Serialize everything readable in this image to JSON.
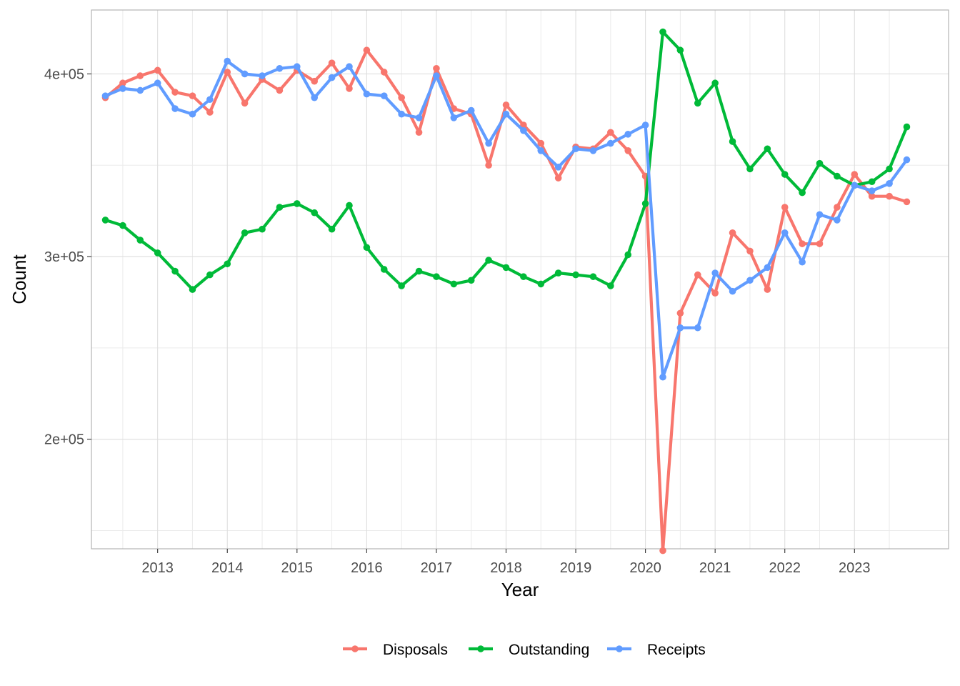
{
  "chart_data": {
    "type": "line",
    "xlabel": "Year",
    "ylabel": "Count",
    "xlim": [
      2012.05,
      2024.35
    ],
    "ylim": [
      140000,
      435000
    ],
    "x_ticks": [
      2013,
      2014,
      2015,
      2016,
      2017,
      2018,
      2019,
      2020,
      2021,
      2022,
      2023
    ],
    "y_ticks": [
      200000,
      300000,
      400000
    ],
    "y_tick_labels": [
      "2e+05",
      "3e+05",
      "4e+05"
    ],
    "grid": true,
    "legend_position": "bottom",
    "x": [
      2012.25,
      2012.5,
      2012.75,
      2013.0,
      2013.25,
      2013.5,
      2013.75,
      2014.0,
      2014.25,
      2014.5,
      2014.75,
      2015.0,
      2015.25,
      2015.5,
      2015.75,
      2016.0,
      2016.25,
      2016.5,
      2016.75,
      2017.0,
      2017.25,
      2017.5,
      2017.75,
      2018.0,
      2018.25,
      2018.5,
      2018.75,
      2019.0,
      2019.25,
      2019.5,
      2019.75,
      2020.0,
      2020.25,
      2020.5,
      2020.75,
      2021.0,
      2021.25,
      2021.5,
      2021.75,
      2022.0,
      2022.25,
      2022.5,
      2022.75,
      2023.0,
      2023.25,
      2023.5,
      2023.75
    ],
    "series": [
      {
        "name": "Disposals",
        "color": "#f8766d",
        "values": [
          387000,
          395000,
          399000,
          402000,
          390000,
          388000,
          379000,
          401000,
          384000,
          397000,
          391000,
          402000,
          396000,
          406000,
          392000,
          413000,
          401000,
          387000,
          368000,
          403000,
          381000,
          378000,
          350000,
          383000,
          372000,
          362000,
          343000,
          360000,
          359000,
          368000,
          358000,
          344000,
          139000,
          269000,
          290000,
          280000,
          313000,
          303000,
          282000,
          327000,
          307000,
          307000,
          327000,
          345000,
          333000,
          333000,
          330000
        ]
      },
      {
        "name": "Outstanding",
        "color": "#00ba38",
        "values": [
          320000,
          317000,
          309000,
          302000,
          292000,
          282000,
          290000,
          296000,
          313000,
          315000,
          327000,
          329000,
          324000,
          315000,
          328000,
          305000,
          293000,
          284000,
          292000,
          289000,
          285000,
          287000,
          298000,
          294000,
          289000,
          285000,
          291000,
          290000,
          289000,
          284000,
          301000,
          329000,
          423000,
          413000,
          384000,
          395000,
          363000,
          348000,
          359000,
          345000,
          335000,
          351000,
          344000,
          339000,
          341000,
          348000,
          371000
        ]
      },
      {
        "name": "Receipts",
        "color": "#619cff",
        "values": [
          388000,
          392000,
          391000,
          395000,
          381000,
          378000,
          386000,
          407000,
          400000,
          399000,
          403000,
          404000,
          387000,
          398000,
          404000,
          389000,
          388000,
          378000,
          376000,
          399000,
          376000,
          380000,
          362000,
          378000,
          369000,
          358000,
          349000,
          359000,
          358000,
          362000,
          367000,
          372000,
          234000,
          261000,
          261000,
          291000,
          281000,
          287000,
          294000,
          313000,
          297000,
          323000,
          320000,
          339000,
          336000,
          340000,
          353000
        ]
      }
    ]
  }
}
